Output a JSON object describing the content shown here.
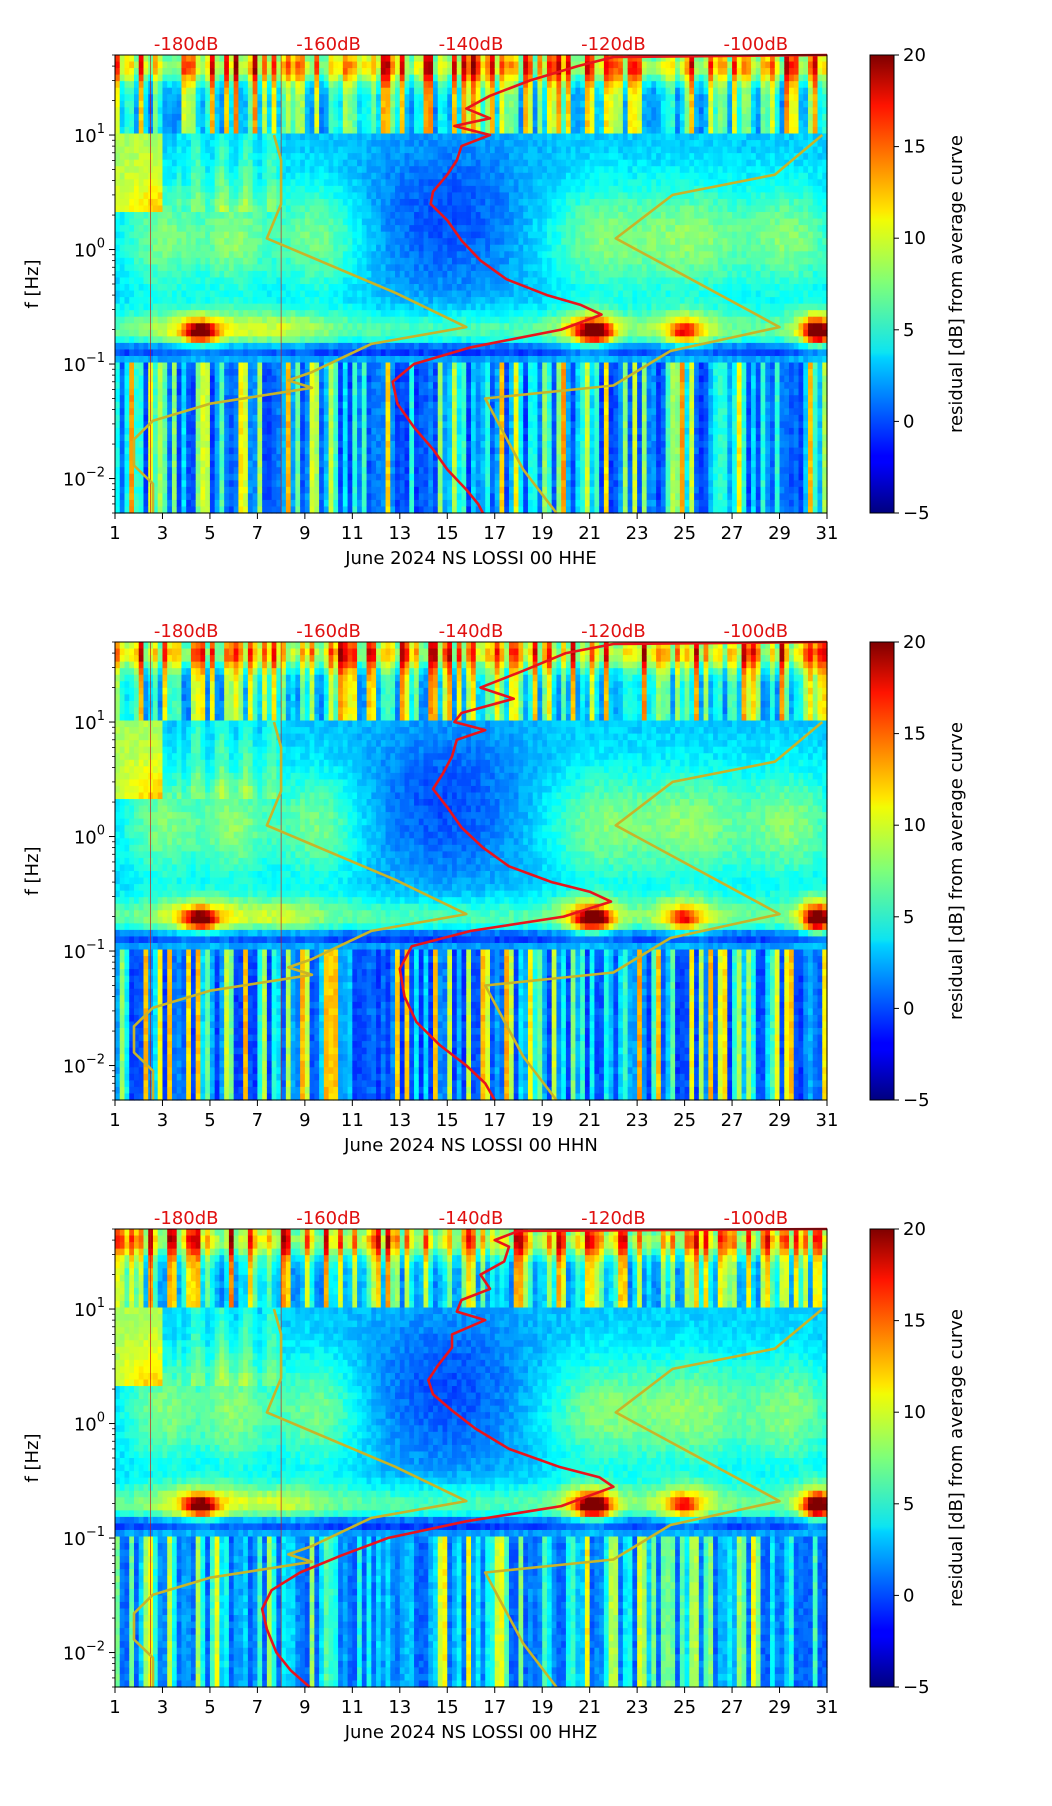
{
  "chart_data": {
    "type": "heatmap",
    "panels": [
      {
        "xlabel": "June 2024 NS LOSSI 00 HHE",
        "ylabel": "f [Hz]",
        "colorbar_label": "residual [dB] from average curve",
        "component": "HHE",
        "red_curve_points": [
          [
            16.5,
            0.005
          ],
          [
            16.3,
            0.006
          ],
          [
            15.8,
            0.008
          ],
          [
            15.0,
            0.012
          ],
          [
            14.4,
            0.018
          ],
          [
            13.6,
            0.028
          ],
          [
            12.9,
            0.045
          ],
          [
            12.7,
            0.07
          ],
          [
            13.6,
            0.1
          ],
          [
            16.0,
            0.14
          ],
          [
            19.8,
            0.2
          ],
          [
            21.5,
            0.27
          ],
          [
            20.6,
            0.33
          ],
          [
            19.2,
            0.4
          ],
          [
            17.5,
            0.55
          ],
          [
            16.4,
            0.8
          ],
          [
            15.6,
            1.2
          ],
          [
            15.0,
            1.8
          ],
          [
            14.3,
            2.5
          ],
          [
            14.4,
            3.2
          ],
          [
            15.0,
            4.5
          ],
          [
            15.4,
            6.0
          ],
          [
            15.6,
            8.0
          ],
          [
            16.8,
            10.0
          ],
          [
            15.3,
            12.0
          ],
          [
            16.8,
            14.0
          ],
          [
            15.8,
            17.0
          ],
          [
            16.8,
            22.0
          ],
          [
            18.5,
            30.0
          ],
          [
            20.5,
            40.0
          ],
          [
            22.0,
            48.0
          ],
          [
            31.0,
            50.0
          ]
        ],
        "yellow_curve_points": [
          [
            2.6,
            0.005
          ],
          [
            2.6,
            0.009
          ],
          [
            1.8,
            0.013
          ],
          [
            1.8,
            0.022
          ],
          [
            2.6,
            0.032
          ],
          [
            5.0,
            0.045
          ],
          [
            9.3,
            0.062
          ],
          [
            8.3,
            0.072
          ],
          [
            9.3,
            0.085
          ],
          [
            11.8,
            0.15
          ],
          [
            15.8,
            0.21
          ],
          [
            12.8,
            0.42
          ],
          [
            7.4,
            1.25
          ],
          [
            8.0,
            2.5
          ],
          [
            8.0,
            6.0
          ],
          [
            7.7,
            10.0
          ]
        ],
        "olive_curve_points": [
          [
            19.6,
            0.005
          ],
          [
            18.2,
            0.012
          ],
          [
            16.6,
            0.05
          ],
          [
            22.0,
            0.065
          ],
          [
            24.4,
            0.13
          ],
          [
            29.0,
            0.21
          ],
          [
            22.1,
            1.25
          ],
          [
            24.5,
            3.0
          ],
          [
            28.8,
            4.5
          ],
          [
            30.8,
            10.0
          ]
        ]
      },
      {
        "xlabel": "June 2024 NS LOSSI 00 HHN",
        "ylabel": "f [Hz]",
        "colorbar_label": "residual [dB] from average curve",
        "component": "HHN",
        "red_curve_points": [
          [
            17.0,
            0.005
          ],
          [
            16.6,
            0.007
          ],
          [
            15.8,
            0.01
          ],
          [
            14.7,
            0.015
          ],
          [
            13.7,
            0.024
          ],
          [
            13.2,
            0.04
          ],
          [
            13.0,
            0.07
          ],
          [
            13.5,
            0.11
          ],
          [
            16.0,
            0.15
          ],
          [
            19.9,
            0.2
          ],
          [
            21.9,
            0.27
          ],
          [
            21.0,
            0.33
          ],
          [
            19.4,
            0.4
          ],
          [
            17.6,
            0.55
          ],
          [
            16.5,
            0.8
          ],
          [
            15.6,
            1.2
          ],
          [
            15.0,
            1.8
          ],
          [
            14.4,
            2.6
          ],
          [
            14.8,
            3.5
          ],
          [
            15.2,
            5.0
          ],
          [
            15.4,
            7.0
          ],
          [
            16.6,
            8.5
          ],
          [
            15.3,
            10.0
          ],
          [
            15.6,
            12.0
          ],
          [
            17.8,
            16.0
          ],
          [
            16.4,
            20.0
          ],
          [
            18.2,
            28.0
          ],
          [
            20.0,
            40.0
          ],
          [
            22.0,
            48.0
          ],
          [
            31.0,
            50.0
          ]
        ],
        "yellow_curve_points": [
          [
            2.6,
            0.005
          ],
          [
            2.6,
            0.009
          ],
          [
            1.8,
            0.013
          ],
          [
            1.8,
            0.022
          ],
          [
            2.6,
            0.032
          ],
          [
            5.0,
            0.045
          ],
          [
            9.3,
            0.062
          ],
          [
            8.3,
            0.072
          ],
          [
            9.3,
            0.085
          ],
          [
            11.8,
            0.15
          ],
          [
            15.8,
            0.21
          ],
          [
            12.8,
            0.42
          ],
          [
            7.4,
            1.25
          ],
          [
            8.0,
            2.5
          ],
          [
            8.0,
            6.0
          ],
          [
            7.7,
            10.0
          ]
        ],
        "olive_curve_points": [
          [
            19.6,
            0.005
          ],
          [
            18.2,
            0.012
          ],
          [
            16.6,
            0.05
          ],
          [
            22.0,
            0.065
          ],
          [
            24.4,
            0.13
          ],
          [
            29.0,
            0.21
          ],
          [
            22.1,
            1.25
          ],
          [
            24.5,
            3.0
          ],
          [
            28.8,
            4.5
          ],
          [
            30.8,
            10.0
          ]
        ]
      },
      {
        "xlabel": "June 2024 NS LOSSI 00 HHZ",
        "ylabel": "f [Hz]",
        "colorbar_label": "residual [dB] from average curve",
        "component": "HHZ",
        "red_curve_points": [
          [
            9.2,
            0.005
          ],
          [
            8.4,
            0.007
          ],
          [
            7.8,
            0.01
          ],
          [
            7.4,
            0.016
          ],
          [
            7.2,
            0.024
          ],
          [
            7.6,
            0.035
          ],
          [
            8.8,
            0.05
          ],
          [
            10.5,
            0.07
          ],
          [
            12.5,
            0.1
          ],
          [
            15.8,
            0.14
          ],
          [
            19.8,
            0.19
          ],
          [
            22.0,
            0.28
          ],
          [
            21.4,
            0.34
          ],
          [
            19.7,
            0.42
          ],
          [
            17.6,
            0.6
          ],
          [
            16.2,
            0.9
          ],
          [
            15.2,
            1.3
          ],
          [
            14.4,
            1.8
          ],
          [
            14.2,
            2.4
          ],
          [
            14.6,
            3.2
          ],
          [
            15.2,
            4.6
          ],
          [
            15.2,
            6.0
          ],
          [
            16.6,
            8.0
          ],
          [
            15.4,
            9.5
          ],
          [
            15.6,
            12.0
          ],
          [
            16.8,
            15.0
          ],
          [
            16.4,
            20.0
          ],
          [
            17.4,
            26.0
          ],
          [
            17.6,
            35.0
          ],
          [
            17.0,
            40.0
          ],
          [
            18.0,
            48.0
          ],
          [
            31.0,
            50.0
          ]
        ],
        "yellow_curve_points": [
          [
            2.6,
            0.005
          ],
          [
            2.6,
            0.009
          ],
          [
            1.8,
            0.013
          ],
          [
            1.8,
            0.022
          ],
          [
            2.6,
            0.032
          ],
          [
            5.0,
            0.045
          ],
          [
            9.3,
            0.062
          ],
          [
            8.3,
            0.072
          ],
          [
            9.3,
            0.085
          ],
          [
            11.8,
            0.15
          ],
          [
            15.8,
            0.21
          ],
          [
            12.8,
            0.42
          ],
          [
            7.4,
            1.25
          ],
          [
            8.0,
            2.5
          ],
          [
            8.0,
            6.0
          ],
          [
            7.7,
            10.0
          ]
        ],
        "olive_curve_points": [
          [
            19.6,
            0.005
          ],
          [
            18.2,
            0.012
          ],
          [
            16.6,
            0.05
          ],
          [
            22.0,
            0.065
          ],
          [
            24.4,
            0.13
          ],
          [
            29.0,
            0.21
          ],
          [
            22.1,
            1.25
          ],
          [
            24.5,
            3.0
          ],
          [
            28.8,
            4.5
          ],
          [
            30.8,
            10.0
          ]
        ]
      }
    ],
    "x_ticks": [
      "1",
      "3",
      "5",
      "7",
      "9",
      "11",
      "13",
      "15",
      "17",
      "19",
      "21",
      "23",
      "25",
      "27",
      "29",
      "31"
    ],
    "x_range": [
      1,
      31
    ],
    "y_scale": "log",
    "y_range": [
      0.005,
      50
    ],
    "y_ticks": [
      {
        "value": 0.01,
        "label": "10",
        "exp": "−2"
      },
      {
        "value": 0.1,
        "label": "10",
        "exp": "−1"
      },
      {
        "value": 1,
        "label": "10",
        "exp": "0"
      },
      {
        "value": 10,
        "label": "10",
        "exp": "1"
      }
    ],
    "top_axis_labels": [
      "-180dB",
      "-160dB",
      "-140dB",
      "-120dB",
      "-100dB"
    ],
    "top_axis_positions": [
      4.0,
      10.0,
      16.0,
      22.0,
      28.0
    ],
    "red_vlines": [
      2.5,
      8.0
    ],
    "colorbar_range": [
      -5,
      20
    ],
    "colorbar_ticks": [
      "−5",
      "0",
      "5",
      "10",
      "15",
      "20"
    ],
    "colorbar_tick_values": [
      -5,
      0,
      5,
      10,
      15,
      20
    ],
    "colormap": "jet",
    "red_curve_color": "#e8141c",
    "yellow_curve_color": "#c8b428",
    "top_label_color": "#e01010"
  }
}
